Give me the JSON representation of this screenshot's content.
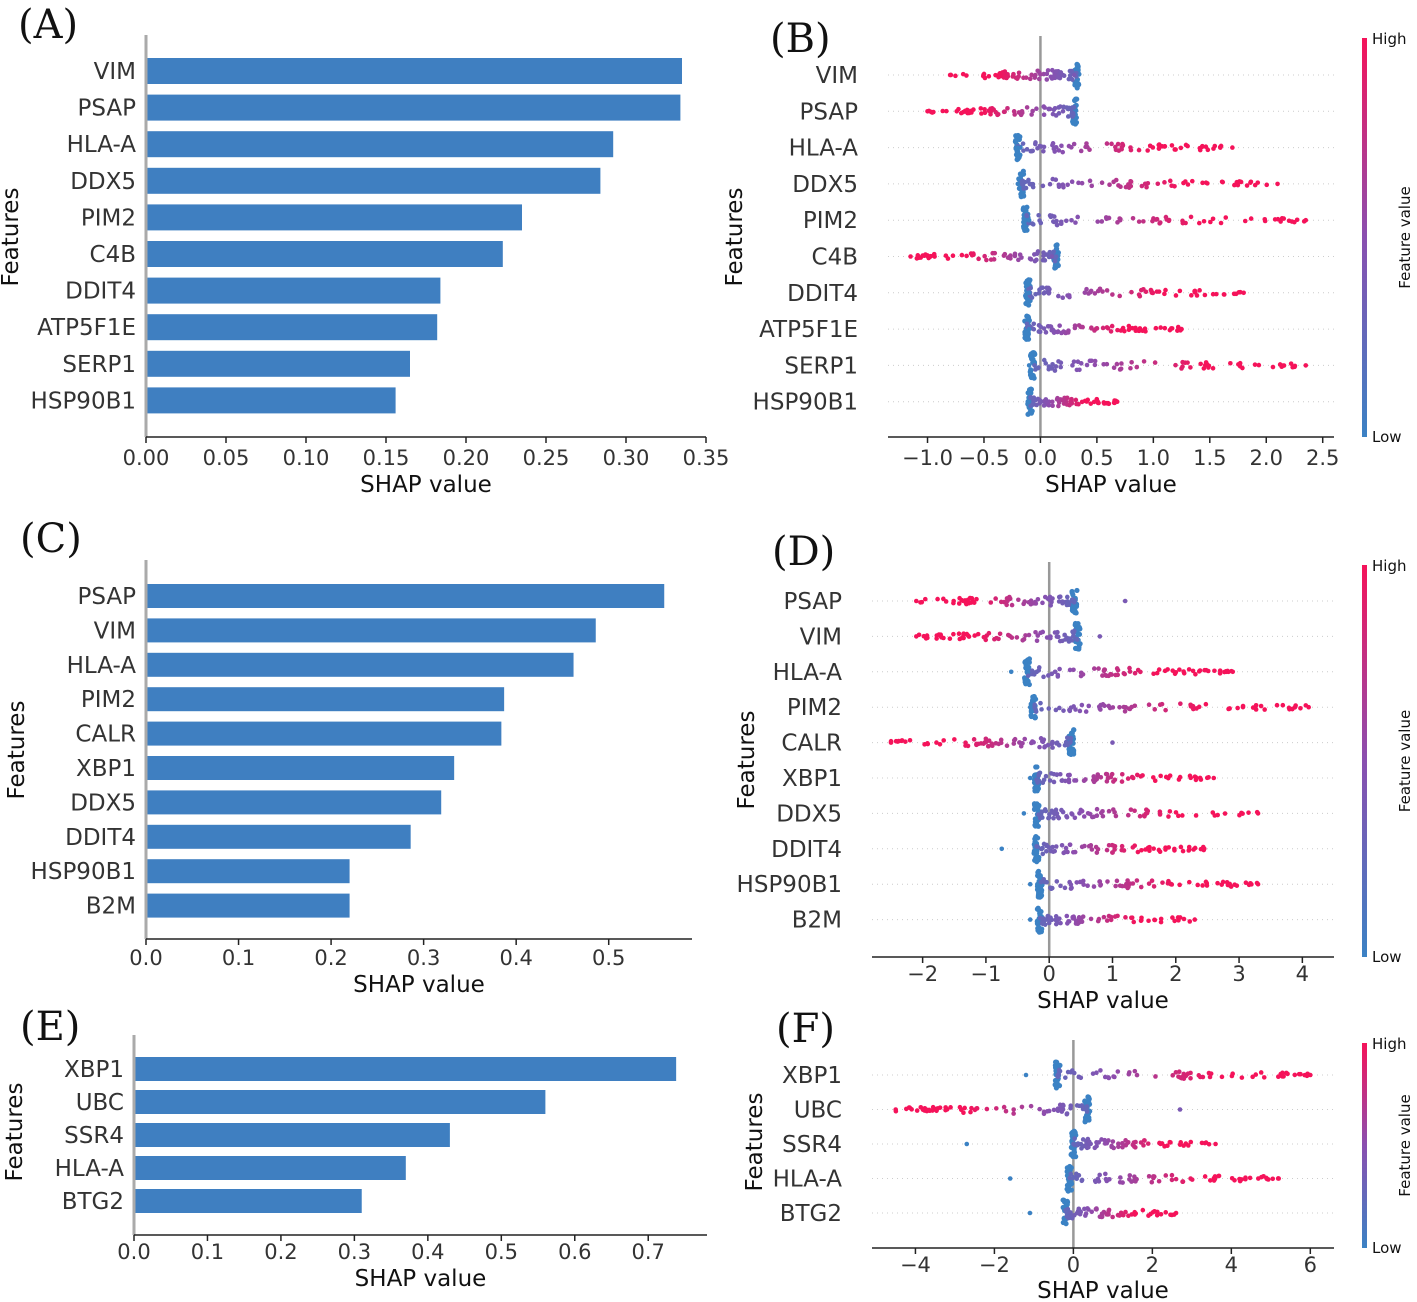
{
  "colors": {
    "bar": "#3f7fc1",
    "low": "#3b82c4",
    "high": "#f5135a",
    "zero_line": "#999999",
    "axis": "#222222"
  },
  "chart_data": [
    {
      "id": "A",
      "type": "bar",
      "orientation": "horizontal",
      "panel_label": "(A)",
      "categories": [
        "VIM",
        "PSAP",
        "HLA-A",
        "DDX5",
        "PIM2",
        "C4B",
        "DDIT4",
        "ATP5F1E",
        "SERP1",
        "HSP90B1"
      ],
      "values": [
        0.335,
        0.334,
        0.292,
        0.284,
        0.235,
        0.223,
        0.184,
        0.182,
        0.165,
        0.156
      ],
      "xlabel": "SHAP value",
      "ylabel": "Features",
      "xlim": [
        0,
        0.35
      ],
      "xticks": [
        "0.00",
        "0.05",
        "0.10",
        "0.15",
        "0.20",
        "0.25",
        "0.30",
        "0.35"
      ]
    },
    {
      "id": "B",
      "type": "scatter",
      "subtype": "beeswarm",
      "panel_label": "(B)",
      "categories": [
        "VIM",
        "PSAP",
        "HLA-A",
        "DDX5",
        "PIM2",
        "C4B",
        "DDIT4",
        "ATP5F1E",
        "SERP1",
        "HSP90B1"
      ],
      "ranges": [
        {
          "low_cluster": 0.32,
          "min": -0.8,
          "max": 0.3,
          "high_side": "negative"
        },
        {
          "low_cluster": 0.3,
          "min": -1.0,
          "max": 0.2,
          "high_side": "negative"
        },
        {
          "low_cluster": -0.2,
          "min": -0.2,
          "max": 1.7,
          "high_side": "positive"
        },
        {
          "low_cluster": -0.17,
          "min": -0.2,
          "max": 2.1,
          "high_side": "positive"
        },
        {
          "low_cluster": -0.13,
          "min": -0.1,
          "max": 2.35,
          "high_side": "positive"
        },
        {
          "low_cluster": 0.14,
          "min": -1.15,
          "max": 0.1,
          "high_side": "negative"
        },
        {
          "low_cluster": -0.11,
          "min": -0.1,
          "max": 1.8,
          "high_side": "positive"
        },
        {
          "low_cluster": -0.12,
          "min": -0.1,
          "max": 1.25,
          "high_side": "positive"
        },
        {
          "low_cluster": -0.07,
          "min": -0.1,
          "max": 2.35,
          "high_side": "positive"
        },
        {
          "low_cluster": -0.09,
          "min": -0.1,
          "max": 0.68,
          "high_side": "positive"
        }
      ],
      "xlabel": "SHAP value",
      "ylabel": "Features",
      "xlim": [
        -1.35,
        2.6
      ],
      "xticks": [
        -1.0,
        -0.5,
        0.0,
        0.5,
        1.0,
        1.5,
        2.0,
        2.5
      ],
      "xtick_labels": [
        "−1.0",
        "−0.5",
        "0.0",
        "0.5",
        "1.0",
        "1.5",
        "2.0",
        "2.5"
      ],
      "colorbar": {
        "title": "Feature value",
        "high": "High",
        "low": "Low"
      }
    },
    {
      "id": "C",
      "type": "bar",
      "orientation": "horizontal",
      "panel_label": "(C)",
      "categories": [
        "PSAP",
        "VIM",
        "HLA-A",
        "PIM2",
        "CALR",
        "XBP1",
        "DDX5",
        "DDIT4",
        "HSP90B1",
        "B2M"
      ],
      "values": [
        0.56,
        0.486,
        0.462,
        0.387,
        0.384,
        0.333,
        0.319,
        0.286,
        0.22,
        0.22
      ],
      "xlabel": "SHAP value",
      "ylabel": "Features",
      "xlim": [
        0,
        0.59
      ],
      "xticks": [
        "0.0",
        "0.1",
        "0.2",
        "0.3",
        "0.4",
        "0.5"
      ]
    },
    {
      "id": "D",
      "type": "scatter",
      "subtype": "beeswarm",
      "panel_label": "(D)",
      "categories": [
        "PSAP",
        "VIM",
        "HLA-A",
        "PIM2",
        "CALR",
        "XBP1",
        "DDX5",
        "DDIT4",
        "HSP90B1",
        "B2M"
      ],
      "ranges": [
        {
          "low_cluster": 0.4,
          "min": -2.1,
          "max": 1.2,
          "high_side": "negative"
        },
        {
          "low_cluster": 0.45,
          "min": -2.1,
          "max": 0.8,
          "high_side": "negative"
        },
        {
          "low_cluster": -0.35,
          "min": -0.6,
          "max": 2.9,
          "high_side": "positive"
        },
        {
          "low_cluster": -0.25,
          "min": -0.3,
          "max": 4.1,
          "high_side": "positive"
        },
        {
          "low_cluster": 0.35,
          "min": -2.5,
          "max": 1.0,
          "high_side": "negative"
        },
        {
          "low_cluster": -0.2,
          "min": -0.3,
          "max": 2.6,
          "high_side": "positive"
        },
        {
          "low_cluster": -0.2,
          "min": -0.4,
          "max": 3.3,
          "high_side": "positive"
        },
        {
          "low_cluster": -0.2,
          "min": -0.75,
          "max": 2.45,
          "high_side": "positive"
        },
        {
          "low_cluster": -0.15,
          "min": -0.3,
          "max": 3.3,
          "high_side": "positive"
        },
        {
          "low_cluster": -0.15,
          "min": -0.3,
          "max": 2.3,
          "high_side": "positive"
        }
      ],
      "xlabel": "SHAP value",
      "ylabel": "Features",
      "xlim": [
        -2.8,
        4.5
      ],
      "xticks": [
        -2,
        -1,
        0,
        1,
        2,
        3,
        4
      ],
      "xtick_labels": [
        "−2",
        "−1",
        "0",
        "1",
        "2",
        "3",
        "4"
      ],
      "colorbar": {
        "title": "Feature value",
        "high": "High",
        "low": "Low"
      }
    },
    {
      "id": "E",
      "type": "bar",
      "orientation": "horizontal",
      "panel_label": "(E)",
      "categories": [
        "XBP1",
        "UBC",
        "SSR4",
        "HLA-A",
        "BTG2"
      ],
      "values": [
        0.738,
        0.56,
        0.43,
        0.37,
        0.31
      ],
      "xlabel": "SHAP value",
      "ylabel": "Features",
      "xlim": [
        0,
        0.78
      ],
      "xticks": [
        "0.0",
        "0.1",
        "0.2",
        "0.3",
        "0.4",
        "0.5",
        "0.6",
        "0.7"
      ]
    },
    {
      "id": "F",
      "type": "scatter",
      "subtype": "beeswarm",
      "panel_label": "(F)",
      "categories": [
        "XBP1",
        "UBC",
        "SSR4",
        "HLA-A",
        "BTG2"
      ],
      "ranges": [
        {
          "low_cluster": -0.4,
          "min": -1.2,
          "max": 6.0,
          "high_side": "positive"
        },
        {
          "low_cluster": 0.35,
          "min": -4.5,
          "max": 2.7,
          "high_side": "negative"
        },
        {
          "low_cluster": 0.0,
          "min": -2.7,
          "max": 3.6,
          "high_side": "positive"
        },
        {
          "low_cluster": -0.1,
          "min": -1.6,
          "max": 5.2,
          "high_side": "positive"
        },
        {
          "low_cluster": -0.2,
          "min": -1.1,
          "max": 2.6,
          "high_side": "positive"
        }
      ],
      "xlabel": "SHAP value",
      "ylabel": "Features",
      "xlim": [
        -5.1,
        6.6
      ],
      "xticks": [
        -4,
        -2,
        0,
        2,
        4,
        6
      ],
      "xtick_labels": [
        "−4",
        "−2",
        "0",
        "2",
        "4",
        "6"
      ],
      "colorbar": {
        "title": "Feature value",
        "high": "High",
        "low": "Low"
      }
    }
  ]
}
